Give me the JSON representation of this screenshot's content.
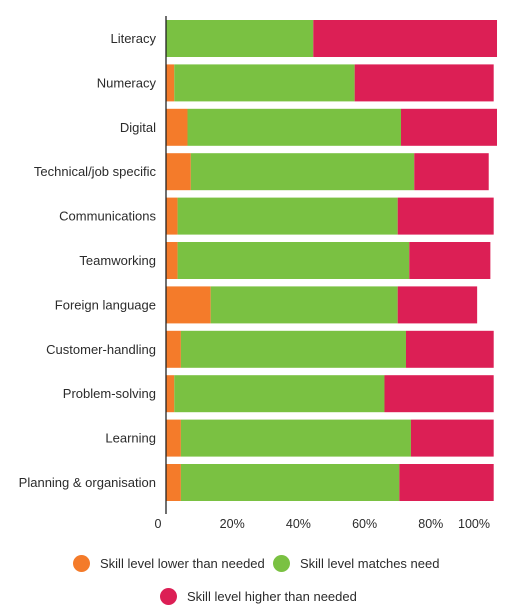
{
  "chart_data": {
    "type": "bar",
    "orientation": "horizontal",
    "stacked": true,
    "categories": [
      "Literacy",
      "Numeracy",
      "Digital",
      "Technical/job specific",
      "Communications",
      "Teamworking",
      "Foreign language",
      "Customer-handling",
      "Problem-solving",
      "Learning",
      "Planning & organisation"
    ],
    "series": [
      {
        "name": "Skill level lower than needed",
        "color": "#f47b2a",
        "values": [
          0,
          2.5,
          6.5,
          7.5,
          3.5,
          3.5,
          13.5,
          4.5,
          2.5,
          4.5,
          4.5
        ]
      },
      {
        "name": "Skill level matches need",
        "color": "#7ac142",
        "values": [
          44.5,
          54.5,
          64.5,
          67.5,
          66.5,
          70,
          56.5,
          68,
          63.5,
          69.5,
          66
        ]
      },
      {
        "name": "Skill level higher than needed",
        "color": "#dc1f55",
        "values": [
          55.5,
          42,
          29,
          22.5,
          29,
          24.5,
          24,
          26.5,
          33,
          25,
          28.5
        ]
      }
    ],
    "xlim": [
      0,
      100
    ],
    "xticks": [
      "0",
      "20%",
      "40%",
      "60%",
      "80%",
      "100%"
    ],
    "grid": false,
    "legend_position": "bottom"
  }
}
